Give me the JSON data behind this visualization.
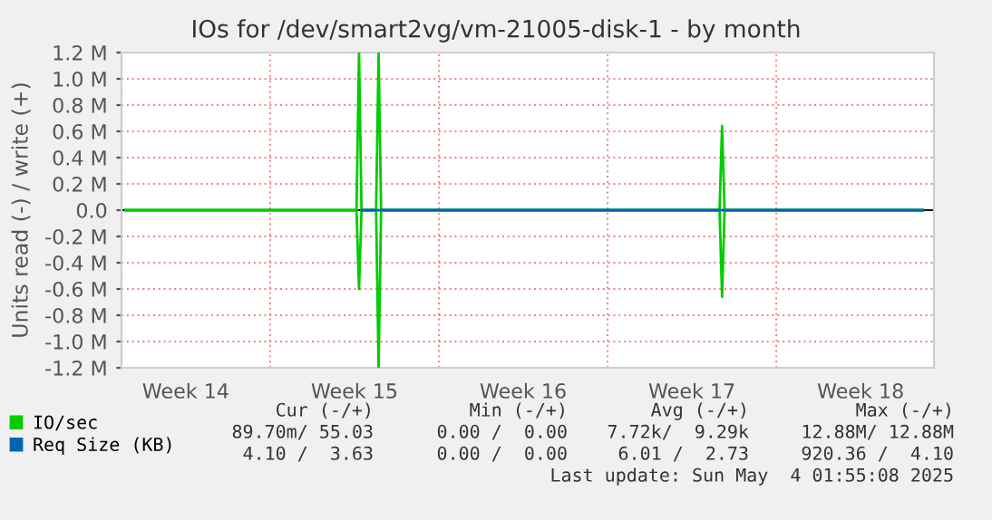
{
  "chart_data": {
    "type": "line",
    "title": "IOs for /dev/smart2vg/vm-21005-disk-1 - by month",
    "ylabel": "Units read (-) / write (+)",
    "series": [
      {
        "name": "IO/sec",
        "color": "#00cc00",
        "x": [
          "2025-04-01T00:00",
          "2025-04-10T14:00",
          "2025-04-10T16:30",
          "2025-04-10T19:00",
          "2025-04-11T09:30",
          "2025-04-11T12:00",
          "2025-04-11T14:30",
          "2025-04-25T15:30",
          "2025-04-25T18:00",
          "2025-04-25T20:30",
          "2025-05-04T02:00"
        ],
        "values": [
          0,
          0,
          1200000,
          0,
          0,
          1200000,
          0,
          0,
          640000,
          0,
          0
        ]
      },
      {
        "color": "#00cc00",
        "x": [
          "2025-04-01T00:00",
          "2025-04-10T14:00",
          "2025-04-10T16:30",
          "2025-04-10T19:00",
          "2025-04-11T09:30",
          "2025-04-11T12:00",
          "2025-04-11T14:30",
          "2025-04-25T15:30",
          "2025-04-25T18:00",
          "2025-04-25T20:30",
          "2025-05-04T02:00"
        ],
        "values": [
          0,
          0,
          -600000,
          0,
          0,
          -1200000,
          0,
          0,
          -660000,
          0,
          0
        ]
      },
      {
        "name": "Req Size (KB)",
        "color": "#0066b3",
        "x": [
          "2025-04-10T19:00",
          "2025-05-04T02:00"
        ],
        "values": [
          0,
          0
        ]
      }
    ],
    "xlim": [
      "2025-03-31T20:00",
      "2025-05-04T13:00"
    ],
    "xticks": [
      {
        "value": "2025-04-03T12:00",
        "label": "Week 14"
      },
      {
        "value": "2025-04-07",
        "label": null
      },
      {
        "value": "2025-04-10T12:00",
        "label": "Week 15"
      },
      {
        "value": "2025-04-14",
        "label": null
      },
      {
        "value": "2025-04-17T12:00",
        "label": "Week 16"
      },
      {
        "value": "2025-04-21",
        "label": null
      },
      {
        "value": "2025-04-24T12:00",
        "label": "Week 17"
      },
      {
        "value": "2025-04-28",
        "label": null
      },
      {
        "value": "2025-05-01T12:00",
        "label": "Week 18"
      }
    ],
    "ylim": [
      -1200000,
      1200000
    ],
    "yticks": [
      {
        "value": -1200000,
        "label": "-1.2 M"
      },
      {
        "value": -1000000,
        "label": "-1.0 M"
      },
      {
        "value": -800000,
        "label": "-0.8 M"
      },
      {
        "value": -600000,
        "label": "-0.6 M"
      },
      {
        "value": -400000,
        "label": "-0.4 M"
      },
      {
        "value": -200000,
        "label": "-0.2 M"
      },
      {
        "value": 0,
        "label": "0.0"
      },
      {
        "value": 200000,
        "label": "0.2 M"
      },
      {
        "value": 400000,
        "label": "0.4 M"
      },
      {
        "value": 600000,
        "label": "0.6 M"
      },
      {
        "value": 800000,
        "label": "0.8 M"
      },
      {
        "value": 1000000,
        "label": "1.0 M"
      },
      {
        "value": 1200000,
        "label": "1.2 M"
      }
    ],
    "ref_lines": [
      {
        "axis": "y",
        "value": 0,
        "color": "#000000"
      }
    ],
    "grid": true,
    "legend": "bottom left",
    "marker": "none",
    "line_style": "solid",
    "annotations": [
      "Cur (-/+)",
      "Min (-/+)",
      "Avg (-/+)",
      "Max (-/+)",
      "89.70m/ 55.03",
      "0.00 /  0.00",
      "7.72k/  9.29k",
      "12.88M/ 12.88M",
      "4.10 /  3.63",
      "0.00 /  0.00",
      "6.01 /  2.73",
      "920.36 /  4.10",
      "Last update: Sun May  4 01:55:08 2025"
    ]
  }
}
